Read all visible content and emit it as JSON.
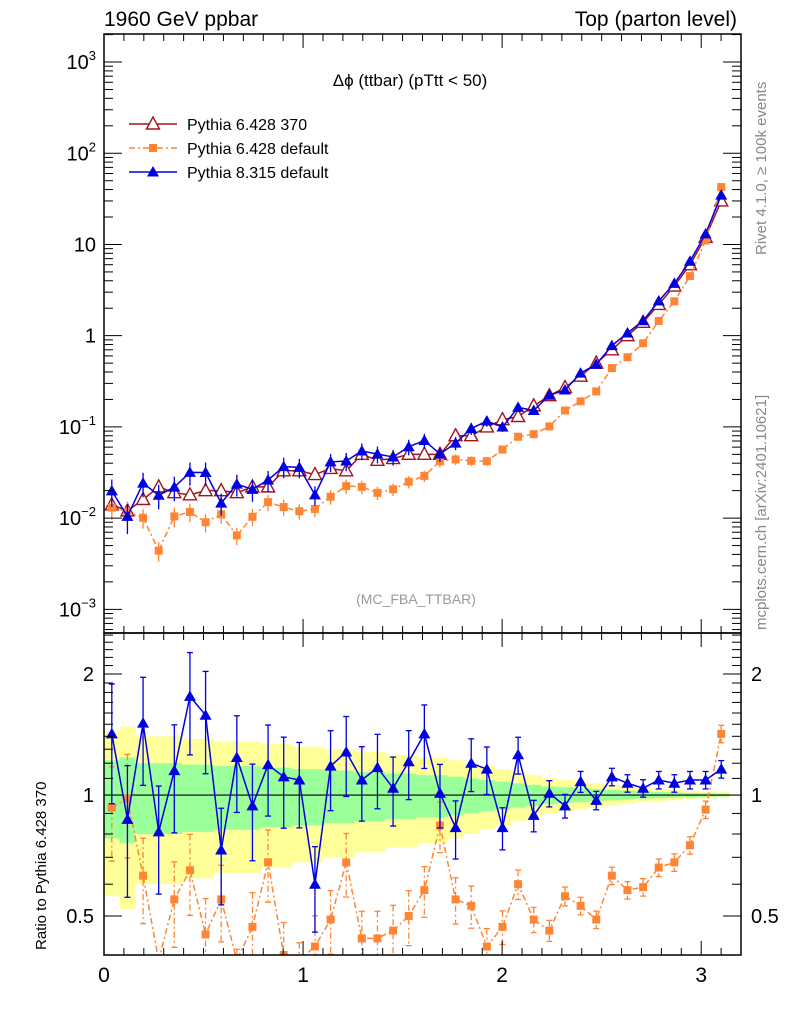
{
  "header": {
    "left": "1960 GeV ppbar",
    "right": "Top (parton level)"
  },
  "side_labels": {
    "rivet": "Rivet 4.1.0, ≥ 100k events",
    "mcplots": "mcplots.cern.ch [arXiv:2401.10621]"
  },
  "chart_data": {
    "type": "line",
    "title": "Δϕ (ttbar) (pTtt < 50)",
    "analysis_label": "(MC_FBA_TTBAR)",
    "xlabel": "",
    "ylabel_ratio": "Ratio to Pythia 6.428 370",
    "xlim": [
      0,
      3.2
    ],
    "ylim": [
      0.00055,
      2030
    ],
    "yscale": "log",
    "ratio_ylim": [
      0.4,
      2.53
    ],
    "ratio_yscale": "log",
    "legend_position": "top-left",
    "x_ticks": [
      "0",
      "1",
      "2",
      "3"
    ],
    "y_ticks": [
      {
        "value": 1000,
        "base": "10",
        "exp": "3"
      },
      {
        "value": 100,
        "base": "10",
        "exp": "2"
      },
      {
        "value": 10,
        "base": "10",
        "exp": ""
      },
      {
        "value": 1,
        "base": "1",
        "exp": ""
      },
      {
        "value": 0.1,
        "base": "10",
        "exp": "−1"
      },
      {
        "value": 0.01,
        "base": "10",
        "exp": "−2"
      },
      {
        "value": 0.001,
        "base": "10",
        "exp": "−3"
      }
    ],
    "ratio_ticks": [
      {
        "value": 2,
        "label": "2"
      },
      {
        "value": 1,
        "label": "1"
      },
      {
        "value": 0.5,
        "label": "0.5"
      }
    ],
    "bins": 40,
    "x_bin_width": 0.0785,
    "reference_series": {
      "name": "Pythia 6.428 370",
      "color": "#a0141e",
      "marker": "open-triangle",
      "line": "solid",
      "values": [
        0.014,
        0.012,
        0.016,
        0.022,
        0.019,
        0.018,
        0.02,
        0.02,
        0.019,
        0.022,
        0.022,
        0.033,
        0.033,
        0.03,
        0.035,
        0.033,
        0.05,
        0.043,
        0.045,
        0.05,
        0.05,
        0.05,
        0.08,
        0.08,
        0.1,
        0.12,
        0.13,
        0.17,
        0.22,
        0.27,
        0.36,
        0.5,
        0.7,
        1.0,
        1.4,
        2.2,
        3.5,
        6.0,
        12,
        30
      ]
    },
    "series": [
      {
        "name": "Pythia 6.428 default",
        "color": "#ff8534",
        "marker": "square",
        "line": "dash-dot",
        "ratio": [
          0.93,
          0.98,
          0.63,
          0.2,
          0.55,
          0.65,
          0.45,
          0.55,
          0.34,
          0.47,
          0.68,
          0.4,
          0.36,
          0.42,
          0.49,
          0.68,
          0.44,
          0.44,
          0.46,
          0.5,
          0.58,
          0.84,
          0.55,
          0.53,
          0.42,
          0.47,
          0.6,
          0.49,
          0.46,
          0.56,
          0.53,
          0.49,
          0.63,
          0.58,
          0.59,
          0.66,
          0.68,
          0.75,
          0.92,
          1.42
        ]
      },
      {
        "name": "Pythia 8.315 default",
        "color": "#0000e0",
        "marker": "triangle",
        "line": "solid",
        "ratio": [
          1.42,
          0.87,
          1.51,
          0.81,
          1.15,
          1.76,
          1.58,
          0.73,
          1.24,
          0.94,
          1.19,
          1.11,
          1.09,
          0.6,
          1.18,
          1.28,
          1.09,
          1.17,
          1.04,
          1.21,
          1.42,
          1.01,
          0.83,
          1.2,
          1.16,
          0.83,
          1.26,
          0.89,
          1.01,
          0.94,
          1.08,
          0.97,
          1.11,
          1.07,
          1.04,
          1.09,
          1.07,
          1.09,
          1.09,
          1.16
        ]
      }
    ],
    "band_rel_err": [
      0.22,
      0.24,
      0.2,
      0.2,
      0.2,
      0.19,
      0.19,
      0.18,
      0.18,
      0.18,
      0.17,
      0.17,
      0.16,
      0.16,
      0.15,
      0.15,
      0.14,
      0.14,
      0.13,
      0.13,
      0.12,
      0.12,
      0.11,
      0.1,
      0.09,
      0.08,
      0.07,
      0.06,
      0.05,
      0.045,
      0.04,
      0.035,
      0.03,
      0.025,
      0.02,
      0.018,
      0.015,
      0.012,
      0.01,
      0.008
    ],
    "band_colors": {
      "inner": "#99ff99",
      "outer": "#ffff99"
    }
  }
}
